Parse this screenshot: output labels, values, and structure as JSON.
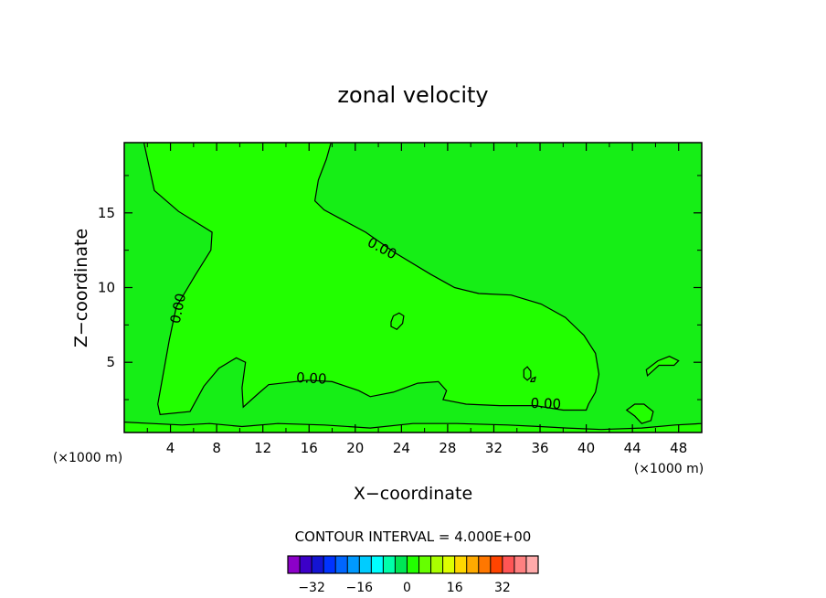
{
  "chart_data": {
    "type": "heatmap",
    "title": "zonal velocity",
    "xlabel": "X−coordinate",
    "ylabel": "Z−coordinate",
    "x_unit_left": "(×1000 m)",
    "x_unit_right": "(×1000 m)",
    "xlim": [
      0,
      50
    ],
    "ylim": [
      0.3,
      19.7
    ],
    "x_ticks": [
      4,
      8,
      12,
      16,
      20,
      24,
      28,
      32,
      36,
      40,
      44,
      48
    ],
    "x_tick_labels": [
      "4",
      "8",
      "12",
      "16",
      "20",
      "24",
      "28",
      "32",
      "36",
      "40",
      "44",
      "48"
    ],
    "y_ticks": [
      5,
      10,
      15
    ],
    "y_tick_labels": [
      "5",
      "10",
      "15"
    ],
    "background_fill": "#16ee16",
    "region_fill": "#22ff00",
    "contour_level_label": "0.00",
    "zero_contour": {
      "label": "0.00",
      "main_region": [
        [
          1.7,
          19.7
        ],
        [
          2.6,
          16.5
        ],
        [
          4.7,
          15.1
        ],
        [
          7.6,
          13.7
        ],
        [
          7.5,
          12.5
        ],
        [
          6.2,
          10.9
        ],
        [
          4.5,
          8.7
        ],
        [
          3.9,
          6.5
        ],
        [
          3.3,
          3.9
        ],
        [
          2.9,
          2.2
        ],
        [
          3.1,
          1.5
        ],
        [
          5.7,
          1.7
        ],
        [
          6.9,
          3.4
        ],
        [
          8.2,
          4.6
        ],
        [
          9.7,
          5.3
        ],
        [
          10.5,
          5.0
        ],
        [
          10.2,
          3.3
        ],
        [
          10.3,
          2.0
        ],
        [
          11.6,
          2.9
        ],
        [
          12.5,
          3.5
        ],
        [
          15.9,
          3.8
        ],
        [
          18.0,
          3.7
        ],
        [
          20.3,
          3.1
        ],
        [
          21.3,
          2.7
        ],
        [
          23.3,
          3.0
        ],
        [
          25.4,
          3.6
        ],
        [
          27.2,
          3.7
        ],
        [
          27.9,
          3.1
        ],
        [
          27.6,
          2.5
        ],
        [
          29.6,
          2.2
        ],
        [
          32.5,
          2.1
        ],
        [
          35.6,
          2.1
        ],
        [
          38.0,
          1.8
        ],
        [
          40.0,
          1.8
        ],
        [
          40.2,
          2.2
        ],
        [
          40.8,
          3.0
        ],
        [
          41.1,
          4.2
        ],
        [
          40.8,
          5.6
        ],
        [
          39.8,
          6.8
        ],
        [
          38.2,
          8.0
        ],
        [
          36.1,
          8.9
        ],
        [
          33.5,
          9.5
        ],
        [
          30.7,
          9.6
        ],
        [
          28.6,
          10.0
        ],
        [
          26.5,
          10.9
        ],
        [
          23.5,
          12.3
        ],
        [
          20.9,
          13.7
        ],
        [
          18.5,
          14.7
        ],
        [
          17.3,
          15.2
        ],
        [
          16.5,
          15.8
        ],
        [
          16.8,
          17.2
        ],
        [
          17.5,
          18.6
        ],
        [
          17.9,
          19.7
        ]
      ],
      "closed_cells": [
        [
          [
            23.1,
            7.7
          ],
          [
            23.3,
            8.1
          ],
          [
            23.8,
            8.3
          ],
          [
            24.2,
            8.1
          ],
          [
            24.1,
            7.6
          ],
          [
            23.6,
            7.2
          ],
          [
            23.1,
            7.4
          ]
        ],
        [
          [
            34.6,
            4.5
          ],
          [
            34.9,
            4.7
          ],
          [
            35.2,
            4.4
          ],
          [
            35.2,
            4.0
          ],
          [
            34.9,
            3.8
          ],
          [
            34.6,
            4.0
          ]
        ],
        [
          [
            35.3,
            3.9
          ],
          [
            35.6,
            4.0
          ],
          [
            35.5,
            3.7
          ],
          [
            35.2,
            3.7
          ]
        ],
        [
          [
            45.2,
            4.5
          ],
          [
            46.2,
            5.1
          ],
          [
            47.2,
            5.4
          ],
          [
            48.0,
            5.1
          ],
          [
            47.6,
            4.8
          ],
          [
            46.3,
            4.8
          ],
          [
            45.3,
            4.1
          ]
        ],
        [
          [
            43.5,
            1.8
          ],
          [
            44.2,
            2.2
          ],
          [
            45.0,
            2.2
          ],
          [
            45.8,
            1.7
          ],
          [
            45.6,
            1.1
          ],
          [
            44.8,
            0.9
          ],
          [
            44.2,
            1.4
          ]
        ]
      ],
      "near_surface": [
        [
          0.0,
          1.0
        ],
        [
          2.4,
          0.9
        ],
        [
          5.0,
          0.8
        ],
        [
          7.4,
          0.9
        ],
        [
          10.2,
          0.7
        ],
        [
          13.3,
          0.9
        ],
        [
          17.3,
          0.8
        ],
        [
          21.3,
          0.6
        ],
        [
          25.0,
          0.9
        ],
        [
          28.8,
          0.9
        ],
        [
          33.2,
          0.8
        ],
        [
          36.0,
          0.7
        ],
        [
          38.3,
          0.6
        ],
        [
          41.3,
          0.5
        ],
        [
          44.8,
          0.6
        ],
        [
          47.7,
          0.8
        ],
        [
          50.0,
          0.9
        ]
      ]
    },
    "colorbar": {
      "title": "CONTOUR INTERVAL = 4.000E+00",
      "tick_values": [
        -32,
        -16,
        0,
        16,
        32
      ],
      "tick_labels": [
        "−32",
        "−16",
        "0",
        "16",
        "32"
      ],
      "colors": [
        "#8c00c8",
        "#3c00c8",
        "#1414d2",
        "#0033ff",
        "#0066ff",
        "#0099ff",
        "#00ccff",
        "#00ffff",
        "#00ffaa",
        "#00e655",
        "#22ff00",
        "#66ff00",
        "#aaff00",
        "#ddff00",
        "#ffd700",
        "#ffaa00",
        "#ff7700",
        "#ff4400",
        "#ff5555",
        "#ff8080",
        "#ffaaaa"
      ]
    }
  }
}
